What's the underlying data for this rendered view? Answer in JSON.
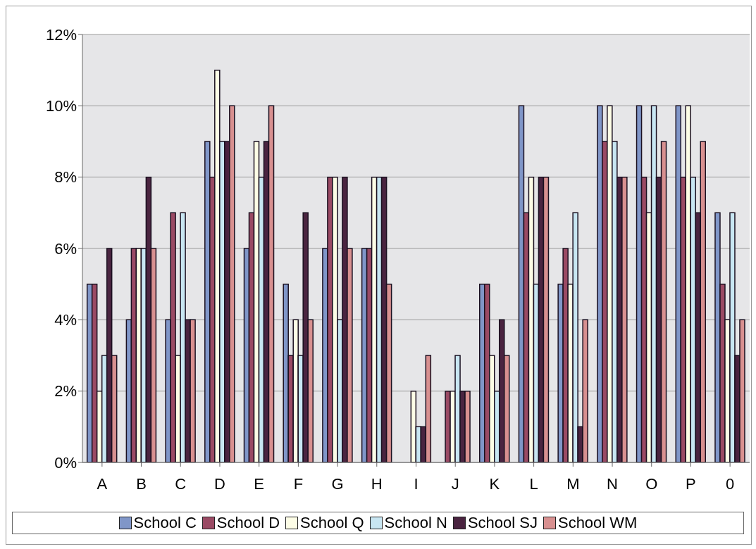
{
  "chart_data": {
    "type": "bar",
    "categories": [
      "A",
      "B",
      "C",
      "D",
      "E",
      "F",
      "G",
      "H",
      "I",
      "J",
      "K",
      "L",
      "M",
      "N",
      "O",
      "P",
      "0"
    ],
    "series": [
      {
        "name": "School C",
        "color": "#8096c8",
        "values": [
          5,
          4,
          4,
          9,
          6,
          5,
          6,
          6,
          0,
          0,
          5,
          10,
          5,
          10,
          10,
          10,
          7
        ]
      },
      {
        "name": "School D",
        "color": "#9a4a64",
        "values": [
          5,
          6,
          7,
          8,
          7,
          3,
          8,
          6,
          0,
          2,
          5,
          7,
          6,
          9,
          8,
          8,
          5
        ]
      },
      {
        "name": "School Q",
        "color": "#fdfde6",
        "values": [
          2,
          6,
          3,
          11,
          9,
          4,
          8,
          8,
          2,
          2,
          3,
          8,
          5,
          10,
          7,
          10,
          4
        ]
      },
      {
        "name": "School N",
        "color": "#c8e6f2",
        "values": [
          3,
          6,
          7,
          9,
          8,
          3,
          4,
          8,
          1,
          3,
          2,
          5,
          7,
          9,
          10,
          8,
          7
        ]
      },
      {
        "name": "School SJ",
        "color": "#4a2440",
        "values": [
          6,
          8,
          4,
          9,
          9,
          7,
          8,
          8,
          1,
          2,
          4,
          8,
          1,
          8,
          8,
          7,
          3
        ]
      },
      {
        "name": "School WM",
        "color": "#d89090",
        "values": [
          3,
          6,
          4,
          10,
          10,
          4,
          6,
          5,
          3,
          2,
          3,
          8,
          4,
          8,
          9,
          9,
          4
        ]
      }
    ],
    "ylim": [
      0,
      12
    ],
    "yticks": [
      {
        "value": 0,
        "label": "0%"
      },
      {
        "value": 2,
        "label": "2%"
      },
      {
        "value": 4,
        "label": "4%"
      },
      {
        "value": 6,
        "label": "6%"
      },
      {
        "value": 8,
        "label": "8%"
      },
      {
        "value": 10,
        "label": "10%"
      },
      {
        "value": 12,
        "label": "12%"
      }
    ],
    "grid": "y",
    "legend": "bottom"
  }
}
